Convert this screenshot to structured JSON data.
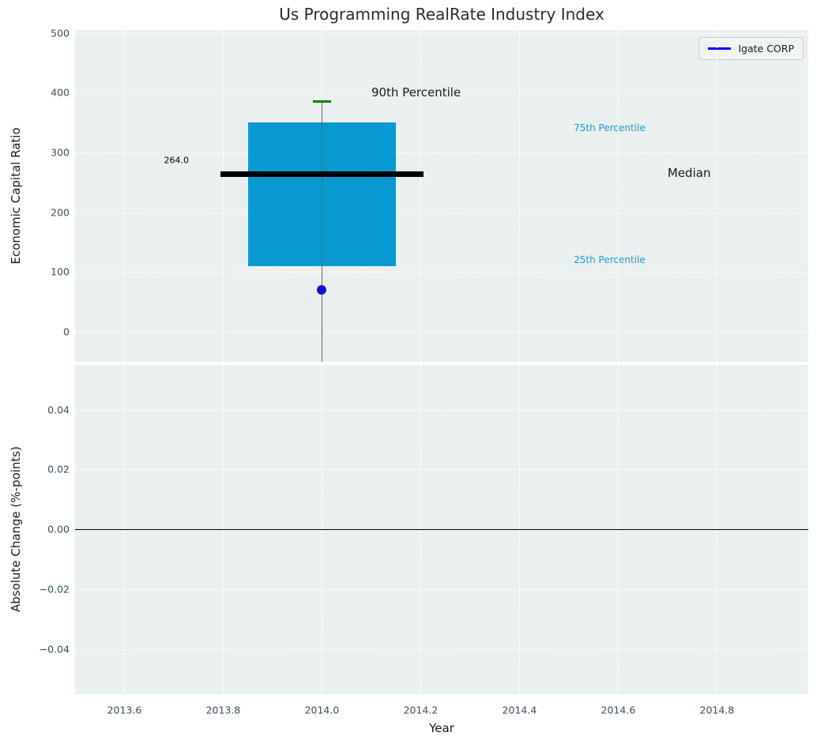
{
  "title": "Us Programming RealRate Industry Index",
  "colors": {
    "axes_bg": "#eaf0f0",
    "grid": "#ffffff",
    "box_fill": "#0999d1",
    "median_line": "#000000",
    "p90_cap": "#008000",
    "whisker": "#666666",
    "company_point": "#1111cc",
    "legend_line": "#0000f0",
    "tick_label": "#3d4d60",
    "cyan_annotation": "#199fcd",
    "zero_line": "#000000"
  },
  "legend": {
    "label": "Igate CORP"
  },
  "x_axis": {
    "label": "Year",
    "xlim": [
      2013.5,
      2014.985
    ],
    "xticks": [
      2013.6,
      2013.8,
      2014.0,
      2014.2,
      2014.4,
      2014.6,
      2014.8
    ],
    "xtick_labels": [
      "2013.6",
      "2013.8",
      "2014.0",
      "2014.2",
      "2014.4",
      "2014.6",
      "2014.8"
    ]
  },
  "chart_data": [
    {
      "type": "boxplot",
      "title": "Us Programming RealRate Industry Index",
      "ylabel": "Economic Capital Ratio",
      "ylim": [
        -50.5,
        505
      ],
      "yticks": [
        0,
        100,
        200,
        300,
        400,
        500
      ],
      "ytick_labels": [
        "0",
        "100",
        "200",
        "300",
        "400",
        "500"
      ],
      "grid": true,
      "legend_position": "upper right",
      "box": {
        "x_center": 2014.0,
        "x_left": 2013.85,
        "x_right": 2014.15,
        "q1": 110,
        "median": 264,
        "q3": 350,
        "p90": 385,
        "whisker_bottom_clipped_at_axis": true,
        "median_line_x_left": 2013.795,
        "median_line_x_right": 2014.205,
        "cap_x_left": 2013.982,
        "cap_x_right": 2014.018
      },
      "series": [
        {
          "name": "Igate CORP",
          "x": 2014.0,
          "y": 70
        }
      ],
      "annotations": [
        {
          "name": "median-value-label",
          "text": "264.0",
          "x": 2013.68,
          "y": 287,
          "color": "#000000",
          "size": 11
        },
        {
          "name": "p90-label",
          "text": "90th Percentile",
          "x": 2014.1,
          "y": 400,
          "color": "#1a1a1a",
          "size": 15
        },
        {
          "name": "p75-label",
          "text": "75th Percentile",
          "x": 2014.51,
          "y": 341,
          "color": "#199fcd",
          "size": 12
        },
        {
          "name": "median-label",
          "text": "Median",
          "x": 2014.7,
          "y": 266,
          "color": "#1a1a1a",
          "size": 15
        },
        {
          "name": "p25-label",
          "text": "25th Percentile",
          "x": 2014.51,
          "y": 120,
          "color": "#199fcd",
          "size": 12
        }
      ]
    },
    {
      "type": "line",
      "ylabel": "Absolute Change (%-points)",
      "ylim": [
        -0.055,
        0.0549
      ],
      "yticks": [
        0.04,
        0.02,
        0.0,
        -0.02,
        -0.04
      ],
      "ytick_labels": [
        "0.04",
        "0.02",
        "0.00",
        "−0.02",
        "−0.04"
      ],
      "grid": true,
      "zero_line_y": 0.0,
      "series": []
    }
  ]
}
